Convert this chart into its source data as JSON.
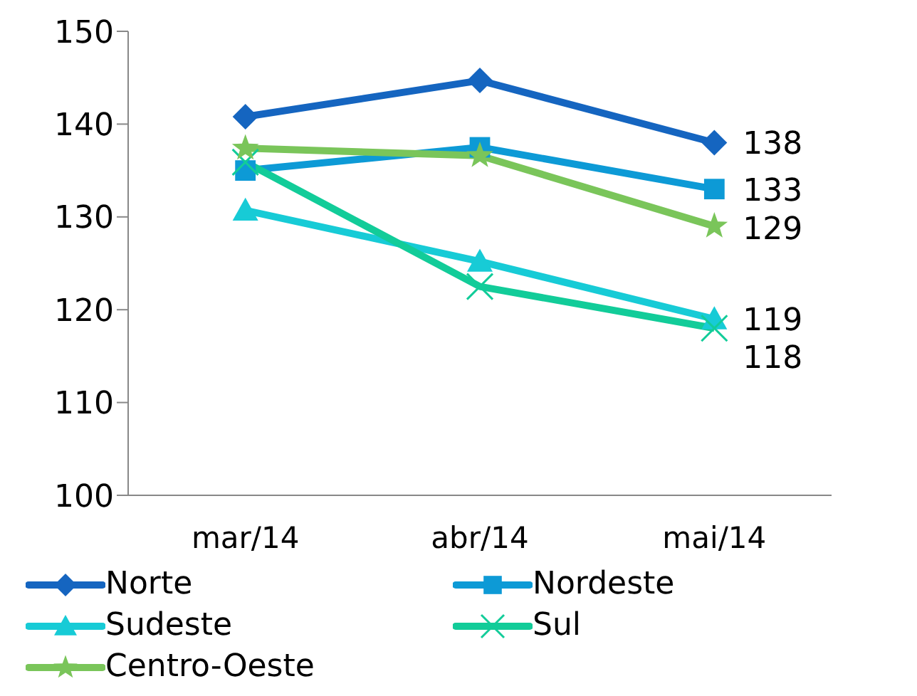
{
  "chart_data": {
    "type": "line",
    "categories": [
      "mar/14",
      "abr/14",
      "mai/14"
    ],
    "ylim": [
      100,
      150
    ],
    "yticks": [
      100,
      110,
      120,
      130,
      140,
      150
    ],
    "grid": false,
    "legend": "bottom",
    "series": [
      {
        "name": "Norte",
        "color": "#1565c0",
        "marker": "diamond",
        "values": [
          140.8,
          144.7,
          138
        ],
        "value_labels": [
          null,
          null,
          "138"
        ]
      },
      {
        "name": "Nordeste",
        "color": "#0d9ad6",
        "marker": "square",
        "values": [
          135,
          137.5,
          133
        ],
        "value_labels": [
          null,
          null,
          "133"
        ]
      },
      {
        "name": "Sudeste",
        "color": "#17cbd6",
        "marker": "triangle",
        "values": [
          130.7,
          125.2,
          119
        ],
        "value_labels": [
          null,
          null,
          "119"
        ]
      },
      {
        "name": "Sul",
        "color": "#12cc99",
        "marker": "cross",
        "values": [
          135.9,
          122.5,
          118
        ],
        "value_labels": [
          null,
          null,
          "118"
        ]
      },
      {
        "name": "Centro-Oeste",
        "color": "#7ac55a",
        "marker": "star",
        "values": [
          137.4,
          136.6,
          129
        ],
        "value_labels": [
          null,
          null,
          "129"
        ]
      }
    ]
  }
}
